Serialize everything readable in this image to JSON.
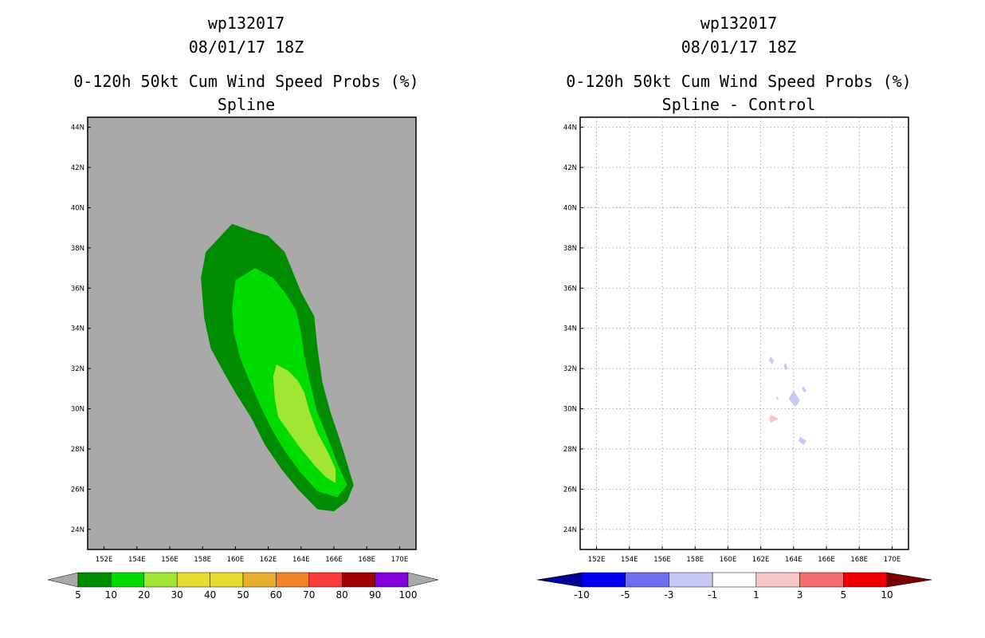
{
  "chart_data": [
    {
      "type": "heatmap",
      "title_lines": [
        "wp132017",
        "08/01/17 18Z",
        "0-120h 50kt Cum Wind Speed Probs (%)",
        "Spline"
      ],
      "xlim": [
        151,
        171
      ],
      "ylim": [
        23,
        44.5
      ],
      "x_ticks": [
        152,
        154,
        156,
        158,
        160,
        162,
        164,
        166,
        168,
        170
      ],
      "x_tick_labels": [
        "152E",
        "154E",
        "156E",
        "158E",
        "160E",
        "162E",
        "164E",
        "166E",
        "168E",
        "170E"
      ],
      "y_ticks": [
        24,
        26,
        28,
        30,
        32,
        34,
        36,
        38,
        40,
        42,
        44
      ],
      "y_tick_labels": [
        "24N",
        "26N",
        "28N",
        "30N",
        "32N",
        "34N",
        "36N",
        "38N",
        "40N",
        "42N",
        "44N"
      ],
      "grid": false,
      "background": "#a9a9a9",
      "regions": [
        {
          "level": "5-10",
          "color": "#008c00",
          "polygon": [
            [
              159.8,
              39.2
            ],
            [
              159.0,
              38.5
            ],
            [
              158.2,
              37.8
            ],
            [
              157.9,
              36.5
            ],
            [
              158.1,
              34.5
            ],
            [
              158.5,
              33.0
            ],
            [
              159.3,
              31.8
            ],
            [
              160.0,
              30.8
            ],
            [
              161.0,
              29.5
            ],
            [
              161.8,
              28.2
            ],
            [
              162.8,
              27.0
            ],
            [
              163.8,
              26.0
            ],
            [
              165.0,
              25.0
            ],
            [
              166.0,
              24.9
            ],
            [
              166.8,
              25.4
            ],
            [
              167.2,
              26.2
            ],
            [
              166.8,
              27.3
            ],
            [
              166.3,
              28.6
            ],
            [
              165.8,
              29.8
            ],
            [
              165.3,
              31.3
            ],
            [
              165.0,
              33.0
            ],
            [
              164.8,
              34.6
            ],
            [
              164.0,
              35.8
            ],
            [
              163.5,
              36.8
            ],
            [
              163.0,
              37.8
            ],
            [
              162.0,
              38.6
            ],
            [
              160.8,
              38.9
            ]
          ]
        },
        {
          "level": "10-20",
          "color": "#00dc00",
          "polygon": [
            [
              161.2,
              37.0
            ],
            [
              160.0,
              36.4
            ],
            [
              159.8,
              35.0
            ],
            [
              159.9,
              33.8
            ],
            [
              160.3,
              32.5
            ],
            [
              160.9,
              31.3
            ],
            [
              161.6,
              30.0
            ],
            [
              162.2,
              29.0
            ],
            [
              163.0,
              27.9
            ],
            [
              164.0,
              26.8
            ],
            [
              165.0,
              25.9
            ],
            [
              166.2,
              25.6
            ],
            [
              166.8,
              26.2
            ],
            [
              166.2,
              27.3
            ],
            [
              165.6,
              28.6
            ],
            [
              165.0,
              29.8
            ],
            [
              164.6,
              31.1
            ],
            [
              164.2,
              32.6
            ],
            [
              164.0,
              33.8
            ],
            [
              163.7,
              34.9
            ],
            [
              163.0,
              35.8
            ],
            [
              162.3,
              36.5
            ]
          ]
        },
        {
          "level": "20-30",
          "color": "#a0e632",
          "polygon": [
            [
              162.5,
              32.2
            ],
            [
              162.3,
              31.6
            ],
            [
              162.4,
              30.5
            ],
            [
              162.6,
              29.6
            ],
            [
              163.2,
              28.9
            ],
            [
              163.9,
              28.1
            ],
            [
              164.8,
              27.2
            ],
            [
              165.5,
              26.6
            ],
            [
              166.1,
              26.3
            ],
            [
              166.1,
              27.0
            ],
            [
              165.6,
              27.9
            ],
            [
              165.0,
              28.8
            ],
            [
              164.5,
              29.9
            ],
            [
              164.2,
              30.8
            ],
            [
              163.8,
              31.4
            ],
            [
              163.2,
              31.9
            ]
          ]
        }
      ],
      "colorbar": {
        "labels": [
          "5",
          "10",
          "20",
          "30",
          "40",
          "50",
          "60",
          "70",
          "80",
          "90",
          "100"
        ],
        "colors": [
          "#008c00",
          "#00dc00",
          "#a0e632",
          "#e6dc32",
          "#e6dc32",
          "#e6af2d",
          "#f08228",
          "#fa3c3c",
          "#a00000",
          "#8200dc"
        ],
        "under_color": "#a9a9a9",
        "over_color": "#a9a9a9"
      }
    },
    {
      "type": "heatmap",
      "title_lines": [
        "wp132017",
        "08/01/17 18Z",
        "0-120h 50kt Cum Wind Speed Probs (%)",
        "Spline - Control"
      ],
      "xlim": [
        151,
        171
      ],
      "ylim": [
        23,
        44.5
      ],
      "x_ticks": [
        152,
        154,
        156,
        158,
        160,
        162,
        164,
        166,
        168,
        170
      ],
      "x_tick_labels": [
        "152E",
        "154E",
        "156E",
        "158E",
        "160E",
        "162E",
        "164E",
        "166E",
        "168E",
        "170E"
      ],
      "y_ticks": [
        24,
        26,
        28,
        30,
        32,
        34,
        36,
        38,
        40,
        42,
        44
      ],
      "y_tick_labels": [
        "24N",
        "26N",
        "28N",
        "30N",
        "32N",
        "34N",
        "36N",
        "38N",
        "40N",
        "42N",
        "44N"
      ],
      "grid": true,
      "background": "#ffffff",
      "regions": [
        {
          "level": "-3 to -1",
          "color": "#c8c8f5",
          "polygon": [
            [
              162.6,
              32.6
            ],
            [
              162.8,
              32.4
            ],
            [
              162.7,
              32.2
            ],
            [
              162.5,
              32.4
            ]
          ]
        },
        {
          "level": "-3 to -1",
          "color": "#c8c8f5",
          "polygon": [
            [
              163.5,
              32.3
            ],
            [
              163.65,
              32.0
            ],
            [
              163.5,
              31.9
            ],
            [
              163.4,
              32.1
            ]
          ]
        },
        {
          "level": "-3 to -1",
          "color": "#c8c8f5",
          "polygon": [
            [
              164.6,
              31.1
            ],
            [
              164.8,
              30.9
            ],
            [
              164.65,
              30.8
            ],
            [
              164.5,
              31.0
            ]
          ]
        },
        {
          "level": "-3 to -1",
          "color": "#c8c8f5",
          "polygon": [
            [
              164.0,
              30.9
            ],
            [
              164.4,
              30.4
            ],
            [
              164.1,
              30.1
            ],
            [
              163.7,
              30.5
            ]
          ]
        },
        {
          "level": "-3 to -1",
          "color": "#c8c8f5",
          "polygon": [
            [
              163.0,
              30.6
            ],
            [
              163.1,
              30.5
            ],
            [
              163.0,
              30.45
            ],
            [
              162.95,
              30.5
            ]
          ]
        },
        {
          "level": "1 to 3",
          "color": "#f5c8c8",
          "polygon": [
            [
              162.6,
              29.7
            ],
            [
              163.1,
              29.5
            ],
            [
              162.6,
              29.3
            ],
            [
              162.5,
              29.5
            ]
          ]
        },
        {
          "level": "-3 to -1",
          "color": "#c8c8f5",
          "polygon": [
            [
              164.4,
              28.6
            ],
            [
              164.8,
              28.4
            ],
            [
              164.6,
              28.2
            ],
            [
              164.3,
              28.4
            ]
          ]
        }
      ],
      "colorbar": {
        "labels": [
          "-10",
          "-5",
          "-3",
          "-1",
          "1",
          "3",
          "5",
          "10"
        ],
        "colors": [
          "#0000f0",
          "#6e6ef0",
          "#c8c8f5",
          "#ffffff",
          "#f5c8c8",
          "#f56e6e",
          "#f00000"
        ],
        "under_color": "#000096",
        "over_color": "#780000"
      }
    }
  ]
}
